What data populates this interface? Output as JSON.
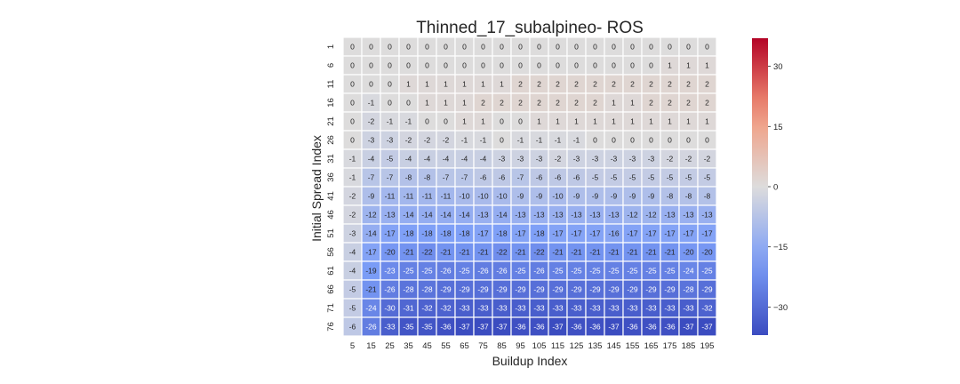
{
  "chart_data": {
    "type": "heatmap",
    "title": "Thinned_17_subalpineo- ROS",
    "xlabel": "Buildup Index",
    "ylabel": "Initial Spread Index",
    "x": [
      "5",
      "15",
      "25",
      "35",
      "45",
      "55",
      "65",
      "75",
      "85",
      "95",
      "105",
      "115",
      "125",
      "135",
      "145",
      "155",
      "165",
      "175",
      "185",
      "195"
    ],
    "y": [
      "1",
      "6",
      "11",
      "16",
      "21",
      "26",
      "31",
      "36",
      "41",
      "46",
      "51",
      "56",
      "61",
      "66",
      "71",
      "76"
    ],
    "values": [
      [
        0,
        0,
        0,
        0,
        0,
        0,
        0,
        0,
        0,
        0,
        0,
        0,
        0,
        0,
        0,
        0,
        0,
        0,
        0,
        0
      ],
      [
        0,
        0,
        0,
        0,
        0,
        0,
        0,
        0,
        0,
        0,
        0,
        0,
        0,
        0,
        0,
        0,
        0,
        1,
        1,
        1
      ],
      [
        0,
        0,
        0,
        1,
        1,
        1,
        1,
        1,
        1,
        2,
        2,
        2,
        2,
        2,
        2,
        2,
        2,
        2,
        2,
        2
      ],
      [
        0,
        -1,
        0,
        0,
        1,
        1,
        1,
        2,
        2,
        2,
        2,
        2,
        2,
        2,
        1,
        1,
        2,
        2,
        2,
        2
      ],
      [
        0,
        -2,
        -1,
        -1,
        0,
        0,
        1,
        1,
        0,
        0,
        1,
        1,
        1,
        1,
        1,
        1,
        1,
        1,
        1,
        1
      ],
      [
        0,
        -3,
        -3,
        -2,
        -2,
        -2,
        -1,
        -1,
        0,
        -1,
        -1,
        -1,
        -1,
        0,
        0,
        0,
        0,
        0,
        0,
        0
      ],
      [
        -1,
        -4,
        -5,
        -4,
        -4,
        -4,
        -4,
        -4,
        -3,
        -3,
        -3,
        -2,
        -3,
        -3,
        -3,
        -3,
        -3,
        -2,
        -2,
        -2
      ],
      [
        -1,
        -7,
        -7,
        -8,
        -8,
        -7,
        -7,
        -6,
        -6,
        -7,
        -6,
        -6,
        -6,
        -5,
        -5,
        -5,
        -5,
        -5,
        -5,
        -5
      ],
      [
        -2,
        -9,
        -11,
        -11,
        -11,
        -11,
        -10,
        -10,
        -10,
        -9,
        -9,
        -10,
        -9,
        -9,
        -9,
        -9,
        -9,
        -8,
        -8,
        -8
      ],
      [
        -2,
        -12,
        -13,
        -14,
        -14,
        -14,
        -14,
        -13,
        -14,
        -13,
        -13,
        -13,
        -13,
        -13,
        -13,
        -12,
        -12,
        -13,
        -13,
        -13
      ],
      [
        -3,
        -14,
        -17,
        -18,
        -18,
        -18,
        -18,
        -17,
        -18,
        -17,
        -18,
        -17,
        -17,
        -17,
        -16,
        -17,
        -17,
        -17,
        -17,
        -17
      ],
      [
        -4,
        -17,
        -20,
        -21,
        -22,
        -21,
        -21,
        -21,
        -22,
        -21,
        -22,
        -21,
        -21,
        -21,
        -21,
        -21,
        -21,
        -21,
        -20,
        -20
      ],
      [
        -4,
        -19,
        -23,
        -25,
        -25,
        -26,
        -25,
        -26,
        -26,
        -25,
        -26,
        -25,
        -25,
        -25,
        -25,
        -25,
        -25,
        -25,
        -24,
        -25
      ],
      [
        -5,
        -21,
        -26,
        -28,
        -28,
        -29,
        -29,
        -29,
        -29,
        -29,
        -29,
        -29,
        -29,
        -29,
        -29,
        -29,
        -29,
        -29,
        -28,
        -29
      ],
      [
        -5,
        -24,
        -30,
        -31,
        -32,
        -32,
        -33,
        -33,
        -33,
        -33,
        -33,
        -33,
        -33,
        -33,
        -33,
        -33,
        -33,
        -33,
        -33,
        -32
      ],
      [
        -6,
        -26,
        -33,
        -35,
        -35,
        -36,
        -37,
        -37,
        -37,
        -36,
        -36,
        -37,
        -36,
        -36,
        -37,
        -36,
        -36,
        -36,
        -37,
        -37
      ]
    ],
    "colorbar": {
      "colormap": "coolwarm",
      "vmin": -37,
      "vmax": 37,
      "ticks": [
        "30",
        "15",
        "0",
        "−15",
        "−30"
      ],
      "tick_values": [
        30,
        15,
        0,
        -15,
        -30
      ]
    },
    "colors": {
      "cold": "#3b4cc0",
      "mid": "#dddcdc",
      "hot": "#b40426",
      "grid": "#ffffff"
    }
  }
}
